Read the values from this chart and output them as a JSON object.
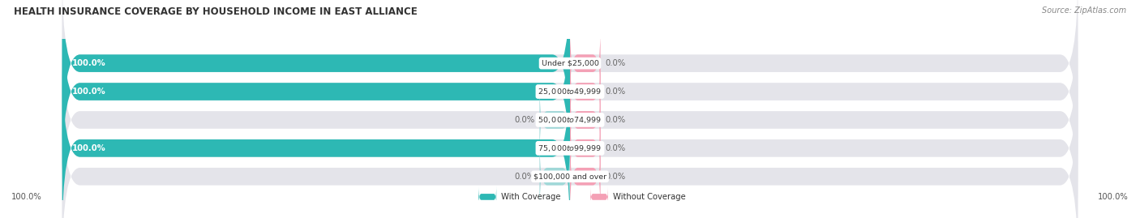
{
  "title": "HEALTH INSURANCE COVERAGE BY HOUSEHOLD INCOME IN EAST ALLIANCE",
  "source": "Source: ZipAtlas.com",
  "categories": [
    "Under $25,000",
    "$25,000 to $49,999",
    "$50,000 to $74,999",
    "$75,000 to $99,999",
    "$100,000 and over"
  ],
  "with_coverage": [
    100.0,
    100.0,
    0.0,
    100.0,
    0.0
  ],
  "without_coverage": [
    0.0,
    0.0,
    0.0,
    0.0,
    0.0
  ],
  "color_with": "#2db8b4",
  "color_without": "#f4a0b5",
  "color_with_light": "#a0d8d8",
  "color_without_light": "#f4a0b5",
  "bar_bg": "#e4e4ea",
  "fig_bg": "#ffffff",
  "title_fontsize": 8.5,
  "source_fontsize": 7,
  "label_fontsize": 7.2,
  "category_fontsize": 6.8,
  "bar_height": 0.62,
  "xlim_left": -100,
  "xlim_right": 100,
  "legend_with": "With Coverage",
  "legend_without": "Without Coverage",
  "bottom_left_label": "100.0%",
  "bottom_right_label": "100.0%",
  "stub_size_pct": 6
}
